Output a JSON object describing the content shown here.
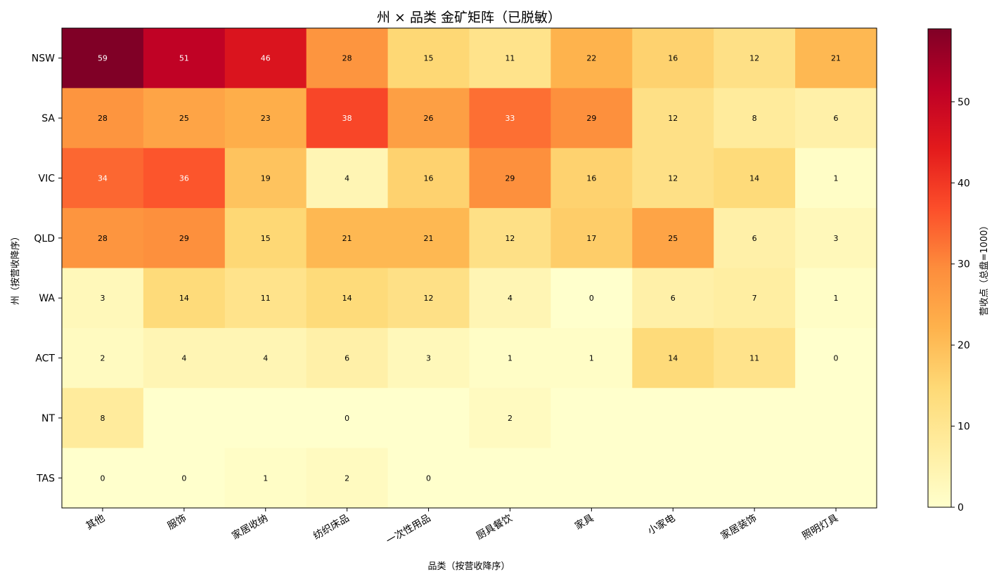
{
  "chart_data": {
    "type": "heatmap",
    "title": "州 × 品类 金矿矩阵（已脱敏）",
    "xlabel": "品类（按营收降序）",
    "ylabel": "州（按营收降序）",
    "x_categories": [
      "其他",
      "服饰",
      "家居收纳",
      "纺织床品",
      "一次性用品",
      "厨具餐饮",
      "家具",
      "小家电",
      "家居装饰",
      "照明灯具"
    ],
    "y_categories": [
      "NSW",
      "SA",
      "VIC",
      "QLD",
      "WA",
      "ACT",
      "NT",
      "TAS"
    ],
    "values": [
      [
        59,
        51,
        46,
        28,
        15,
        11,
        22,
        16,
        12,
        21
      ],
      [
        28,
        25,
        23,
        38,
        26,
        33,
        29,
        12,
        8,
        6
      ],
      [
        34,
        36,
        19,
        4,
        16,
        29,
        16,
        12,
        14,
        1
      ],
      [
        28,
        29,
        15,
        21,
        21,
        12,
        17,
        25,
        6,
        3
      ],
      [
        3,
        14,
        11,
        14,
        12,
        4,
        0,
        6,
        7,
        1
      ],
      [
        2,
        4,
        4,
        6,
        3,
        1,
        1,
        14,
        11,
        0
      ],
      [
        8,
        null,
        null,
        0,
        null,
        2,
        null,
        null,
        null,
        null
      ],
      [
        0,
        0,
        1,
        2,
        0,
        null,
        null,
        null,
        null,
        null
      ]
    ],
    "colorbar": {
      "label": "营收点（总盘=1000）",
      "range": [
        0,
        59
      ],
      "ticks": [
        0,
        10,
        20,
        30,
        40,
        50
      ]
    },
    "colormap": "YlOrRd",
    "colors": {
      "label_dark": "#000000",
      "label_light": "#ffffff"
    }
  }
}
